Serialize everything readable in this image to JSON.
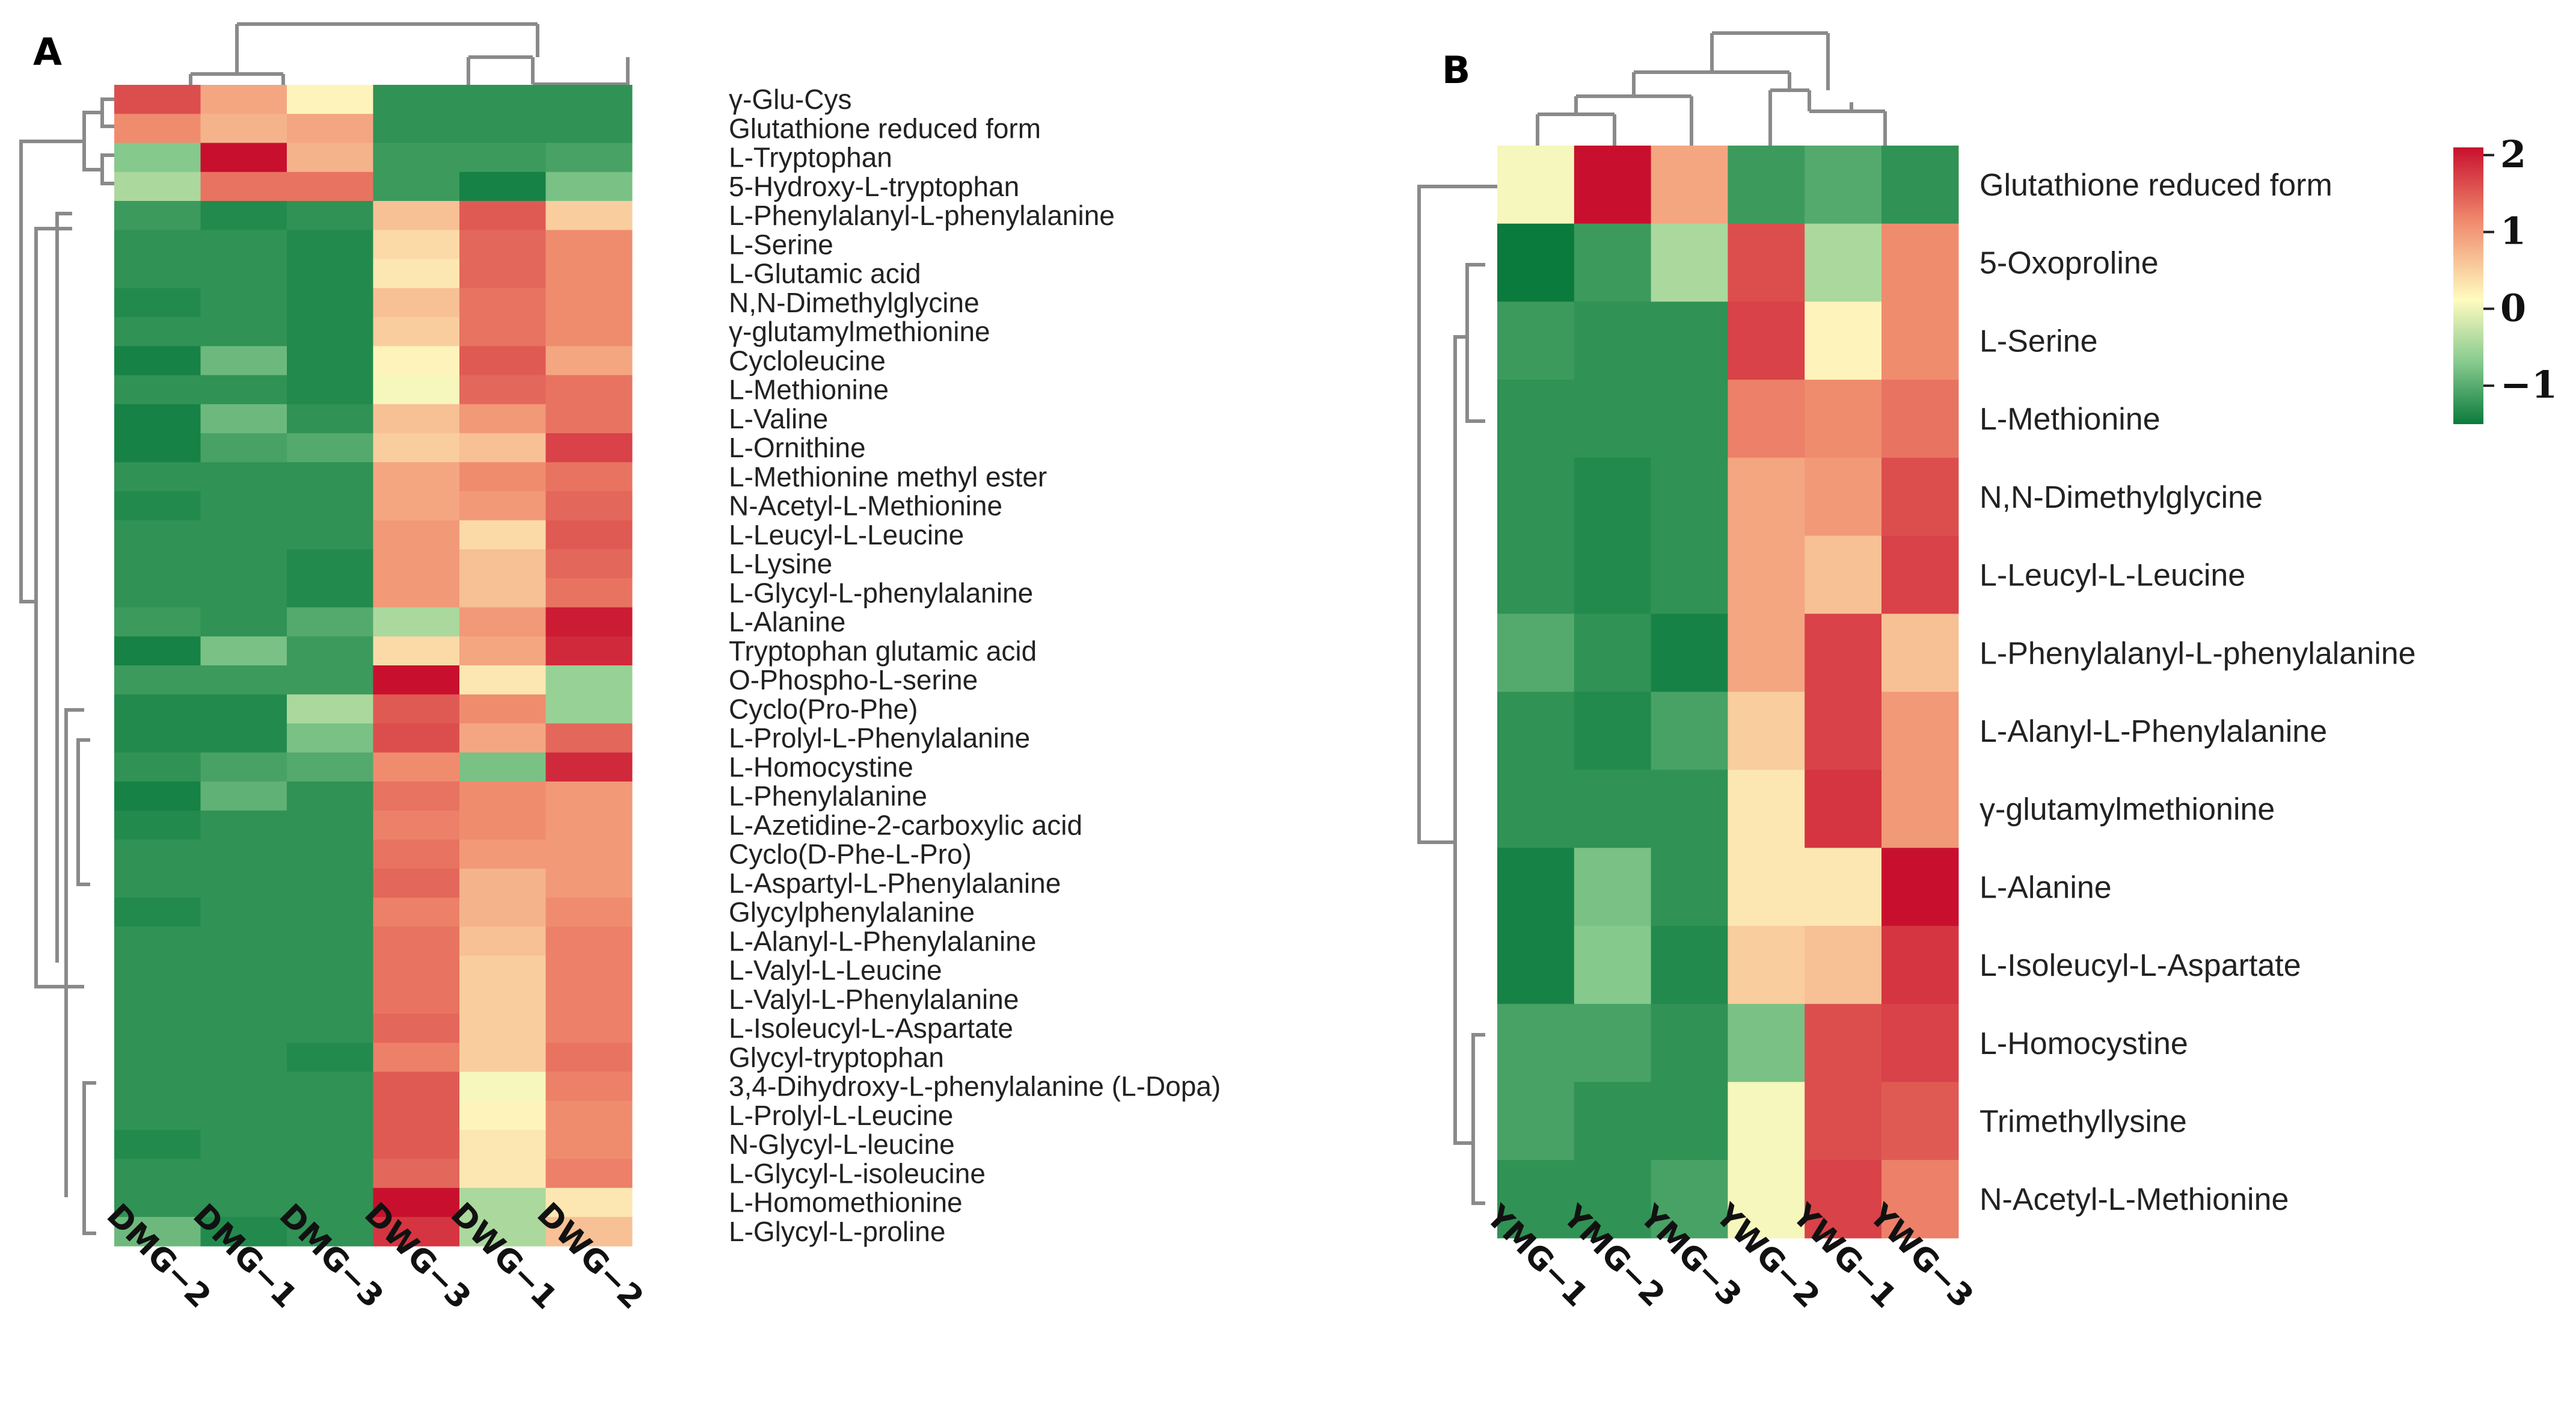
{
  "chart_data": [
    {
      "type": "heatmap",
      "panel_label": "A",
      "columns": [
        "DMG−2",
        "DMG−1",
        "DMG−3",
        "DWG−3",
        "DWG−1",
        "DWG−2"
      ],
      "rows": [
        "γ-Glu-Cys",
        "Glutathione reduced form",
        "L-Tryptophan",
        "5-Hydroxy-L-tryptophan",
        "L-Phenylalanyl-L-phenylalanine",
        "L-Serine",
        "L-Glutamic acid",
        "N,N-Dimethylglycine",
        "γ-glutamylmethionine",
        "Cycloleucine",
        "L-Methionine",
        "L-Valine",
        "L-Ornithine",
        "L-Methionine methyl ester",
        "N-Acetyl-L-Methionine",
        "L-Leucyl-L-Leucine",
        "L-Lysine",
        "L-Glycyl-L-phenylalanine",
        "L-Alanine",
        "Tryptophan glutamic acid",
        "O-Phospho-L-serine",
        "Cyclo(Pro-Phe)",
        "L-Prolyl-L-Phenylalanine",
        "L-Homocystine",
        "L-Phenylalanine",
        "L-Azetidine-2-carboxylic acid",
        "Cyclo(D-Phe-L-Pro)",
        "L-Aspartyl-L-Phenylalanine",
        "Glycylphenylalanine",
        "L-Alanyl-L-Phenylalanine",
        "L-Valyl-L-Leucine",
        "L-Valyl-L-Phenylalanine",
        "L-Isoleucyl-L-Aspartate",
        "Glycyl-tryptophan",
        "3,4-Dihydroxy-L-phenylalanine (L-Dopa)",
        "L-Prolyl-L-Leucine",
        "N-Glycyl-L-leucine",
        "L-Glycyl-L-isoleucine",
        "L-Homomethionine",
        "L-Glycyl-L-proline"
      ],
      "values": [
        [
          1.5,
          0.8,
          0.2,
          -1.2,
          -1.2,
          -1.2
        ],
        [
          1.0,
          0.7,
          0.8,
          -1.2,
          -1.2,
          -1.2
        ],
        [
          -0.5,
          2.0,
          0.7,
          -1.1,
          -1.1,
          -1.0
        ],
        [
          -0.3,
          1.2,
          1.2,
          -1.1,
          -1.4,
          -0.6
        ],
        [
          -1.1,
          -1.3,
          -1.2,
          0.6,
          1.4,
          0.5
        ],
        [
          -1.2,
          -1.2,
          -1.3,
          0.4,
          1.3,
          1.0
        ],
        [
          -1.2,
          -1.2,
          -1.3,
          0.3,
          1.3,
          1.0
        ],
        [
          -1.3,
          -1.2,
          -1.3,
          0.6,
          1.2,
          1.0
        ],
        [
          -1.2,
          -1.2,
          -1.3,
          0.5,
          1.2,
          1.0
        ],
        [
          -1.4,
          -0.7,
          -1.3,
          0.2,
          1.4,
          0.8
        ],
        [
          -1.2,
          -1.2,
          -1.3,
          0.1,
          1.3,
          1.2
        ],
        [
          -1.4,
          -0.7,
          -1.2,
          0.6,
          0.9,
          1.2
        ],
        [
          -1.4,
          -1.0,
          -0.9,
          0.5,
          0.6,
          1.6
        ],
        [
          -1.2,
          -1.2,
          -1.2,
          0.8,
          1.0,
          1.2
        ],
        [
          -1.3,
          -1.2,
          -1.2,
          0.8,
          0.9,
          1.3
        ],
        [
          -1.2,
          -1.2,
          -1.2,
          0.9,
          0.4,
          1.4
        ],
        [
          -1.2,
          -1.2,
          -1.3,
          0.9,
          0.6,
          1.3
        ],
        [
          -1.2,
          -1.2,
          -1.3,
          0.9,
          0.6,
          1.2
        ],
        [
          -1.1,
          -1.2,
          -0.9,
          -0.3,
          0.9,
          1.9
        ],
        [
          -1.4,
          -0.6,
          -1.1,
          0.4,
          0.8,
          1.8
        ],
        [
          -1.1,
          -1.1,
          -1.1,
          2.0,
          0.3,
          -0.4
        ],
        [
          -1.3,
          -1.3,
          -0.3,
          1.4,
          1.0,
          -0.4
        ],
        [
          -1.3,
          -1.3,
          -0.6,
          1.5,
          0.8,
          1.3
        ],
        [
          -1.2,
          -1.0,
          -0.9,
          1.0,
          -0.6,
          1.8
        ],
        [
          -1.4,
          -0.8,
          -1.2,
          1.2,
          1.0,
          0.9
        ],
        [
          -1.3,
          -1.2,
          -1.2,
          1.1,
          1.0,
          0.9
        ],
        [
          -1.2,
          -1.2,
          -1.2,
          1.2,
          0.9,
          0.9
        ],
        [
          -1.2,
          -1.2,
          -1.2,
          1.3,
          0.7,
          0.9
        ],
        [
          -1.3,
          -1.2,
          -1.2,
          1.1,
          0.7,
          1.0
        ],
        [
          -1.2,
          -1.2,
          -1.2,
          1.2,
          0.6,
          1.1
        ],
        [
          -1.2,
          -1.2,
          -1.2,
          1.2,
          0.5,
          1.1
        ],
        [
          -1.2,
          -1.2,
          -1.2,
          1.2,
          0.5,
          1.1
        ],
        [
          -1.2,
          -1.2,
          -1.2,
          1.3,
          0.5,
          1.1
        ],
        [
          -1.2,
          -1.2,
          -1.3,
          1.1,
          0.5,
          1.2
        ],
        [
          -1.2,
          -1.2,
          -1.2,
          1.4,
          0.1,
          1.1
        ],
        [
          -1.2,
          -1.2,
          -1.2,
          1.4,
          0.2,
          1.0
        ],
        [
          -1.3,
          -1.2,
          -1.2,
          1.4,
          0.3,
          1.0
        ],
        [
          -1.2,
          -1.2,
          -1.2,
          1.3,
          0.3,
          1.1
        ],
        [
          -1.2,
          -1.2,
          -1.2,
          2.0,
          -0.3,
          0.3
        ],
        [
          -0.7,
          -1.3,
          -1.2,
          1.7,
          -0.3,
          0.6
        ]
      ]
    },
    {
      "type": "heatmap",
      "panel_label": "B",
      "columns": [
        "YMG−1",
        "YMG−2",
        "YMG−3",
        "YWG−2",
        "YWG−1",
        "YWG−3"
      ],
      "rows": [
        "Glutathione reduced form",
        "5-Oxoproline",
        "L-Serine",
        "L-Methionine",
        "N,N-Dimethylglycine",
        "L-Leucyl-L-Leucine",
        "L-Phenylalanyl-L-phenylalanine",
        "L-Alanyl-L-Phenylalanine",
        "γ-glutamylmethionine",
        "L-Alanine",
        "L-Isoleucyl-L-Aspartate",
        "L-Homocystine",
        "Trimethyllysine",
        "N-Acetyl-L-Methionine"
      ],
      "values": [
        [
          0.1,
          2.0,
          0.8,
          -1.1,
          -0.9,
          -1.2
        ],
        [
          -1.5,
          -1.1,
          -0.3,
          1.5,
          -0.3,
          1.0
        ],
        [
          -1.1,
          -1.2,
          -1.2,
          1.6,
          0.2,
          1.0
        ],
        [
          -1.2,
          -1.2,
          -1.2,
          1.1,
          1.0,
          1.2
        ],
        [
          -1.2,
          -1.3,
          -1.2,
          0.8,
          0.9,
          1.5
        ],
        [
          -1.2,
          -1.3,
          -1.2,
          0.8,
          0.6,
          1.6
        ],
        [
          -0.9,
          -1.2,
          -1.4,
          0.8,
          1.6,
          0.6
        ],
        [
          -1.2,
          -1.3,
          -1.0,
          0.5,
          1.6,
          0.9
        ],
        [
          -1.2,
          -1.2,
          -1.2,
          0.3,
          1.7,
          0.9
        ],
        [
          -1.4,
          -0.6,
          -1.2,
          0.3,
          0.3,
          2.0
        ],
        [
          -1.4,
          -0.5,
          -1.3,
          0.5,
          0.6,
          1.7
        ],
        [
          -1.0,
          -1.0,
          -1.2,
          -0.6,
          1.5,
          1.6
        ],
        [
          -1.0,
          -1.2,
          -1.2,
          0.1,
          1.5,
          1.4
        ],
        [
          -1.2,
          -1.2,
          -1.0,
          0.1,
          1.6,
          1.1
        ]
      ]
    }
  ],
  "legend": {
    "ticks": [
      "2",
      "1",
      "0",
      "−1"
    ],
    "tick_values": [
      2,
      1,
      0,
      -1
    ],
    "range": [
      -1.5,
      2.1
    ],
    "colors": {
      "high": "#c8102e",
      "mid_high": "#f08c6e",
      "mid": "#fffbc0",
      "mid_low": "#85c98d",
      "low": "#0b7a3d"
    }
  }
}
